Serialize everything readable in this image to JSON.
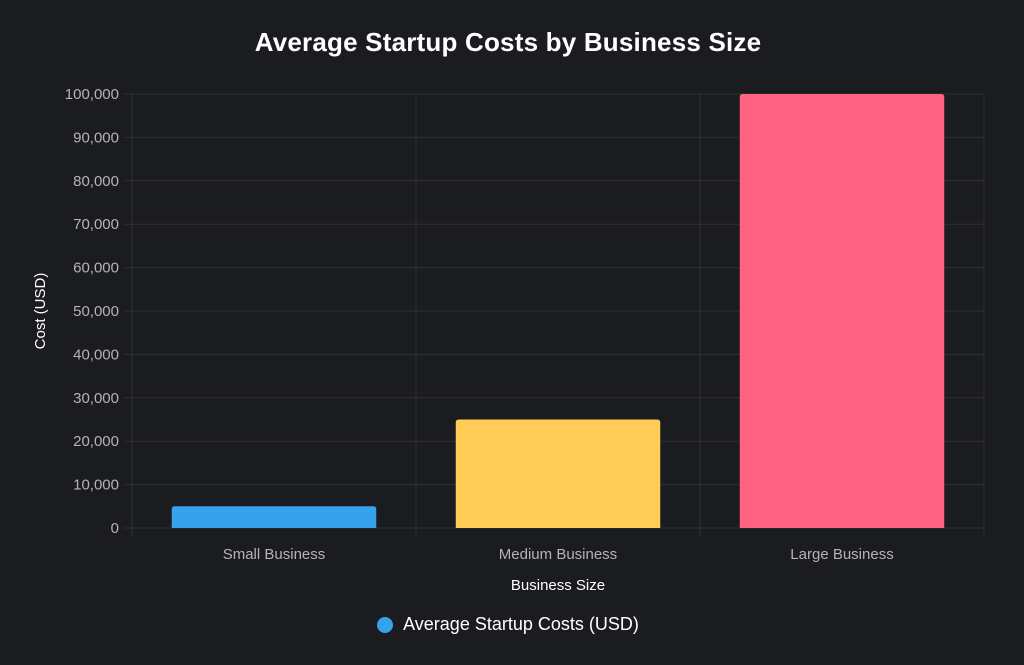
{
  "chart_data": {
    "type": "bar",
    "title": "Average Startup Costs by Business Size",
    "xlabel": "Business Size",
    "ylabel": "Cost (USD)",
    "categories": [
      "Small Business",
      "Medium Business",
      "Large Business"
    ],
    "series": [
      {
        "name": "Average Startup Costs (USD)",
        "values": [
          5000,
          25000,
          100000
        ],
        "colors": [
          "#36a2eb",
          "#ffcd56",
          "#ff6384"
        ]
      }
    ],
    "ylim": [
      0,
      100000
    ],
    "yticks": [
      "0",
      "10,000",
      "20,000",
      "30,000",
      "40,000",
      "50,000",
      "60,000",
      "70,000",
      "80,000",
      "90,000",
      "100,000"
    ],
    "ytick_values": [
      0,
      10000,
      20000,
      30000,
      40000,
      50000,
      60000,
      70000,
      80000,
      90000,
      100000
    ],
    "grid": true,
    "legend_position": "bottom",
    "legend_color": "#36a2eb"
  }
}
